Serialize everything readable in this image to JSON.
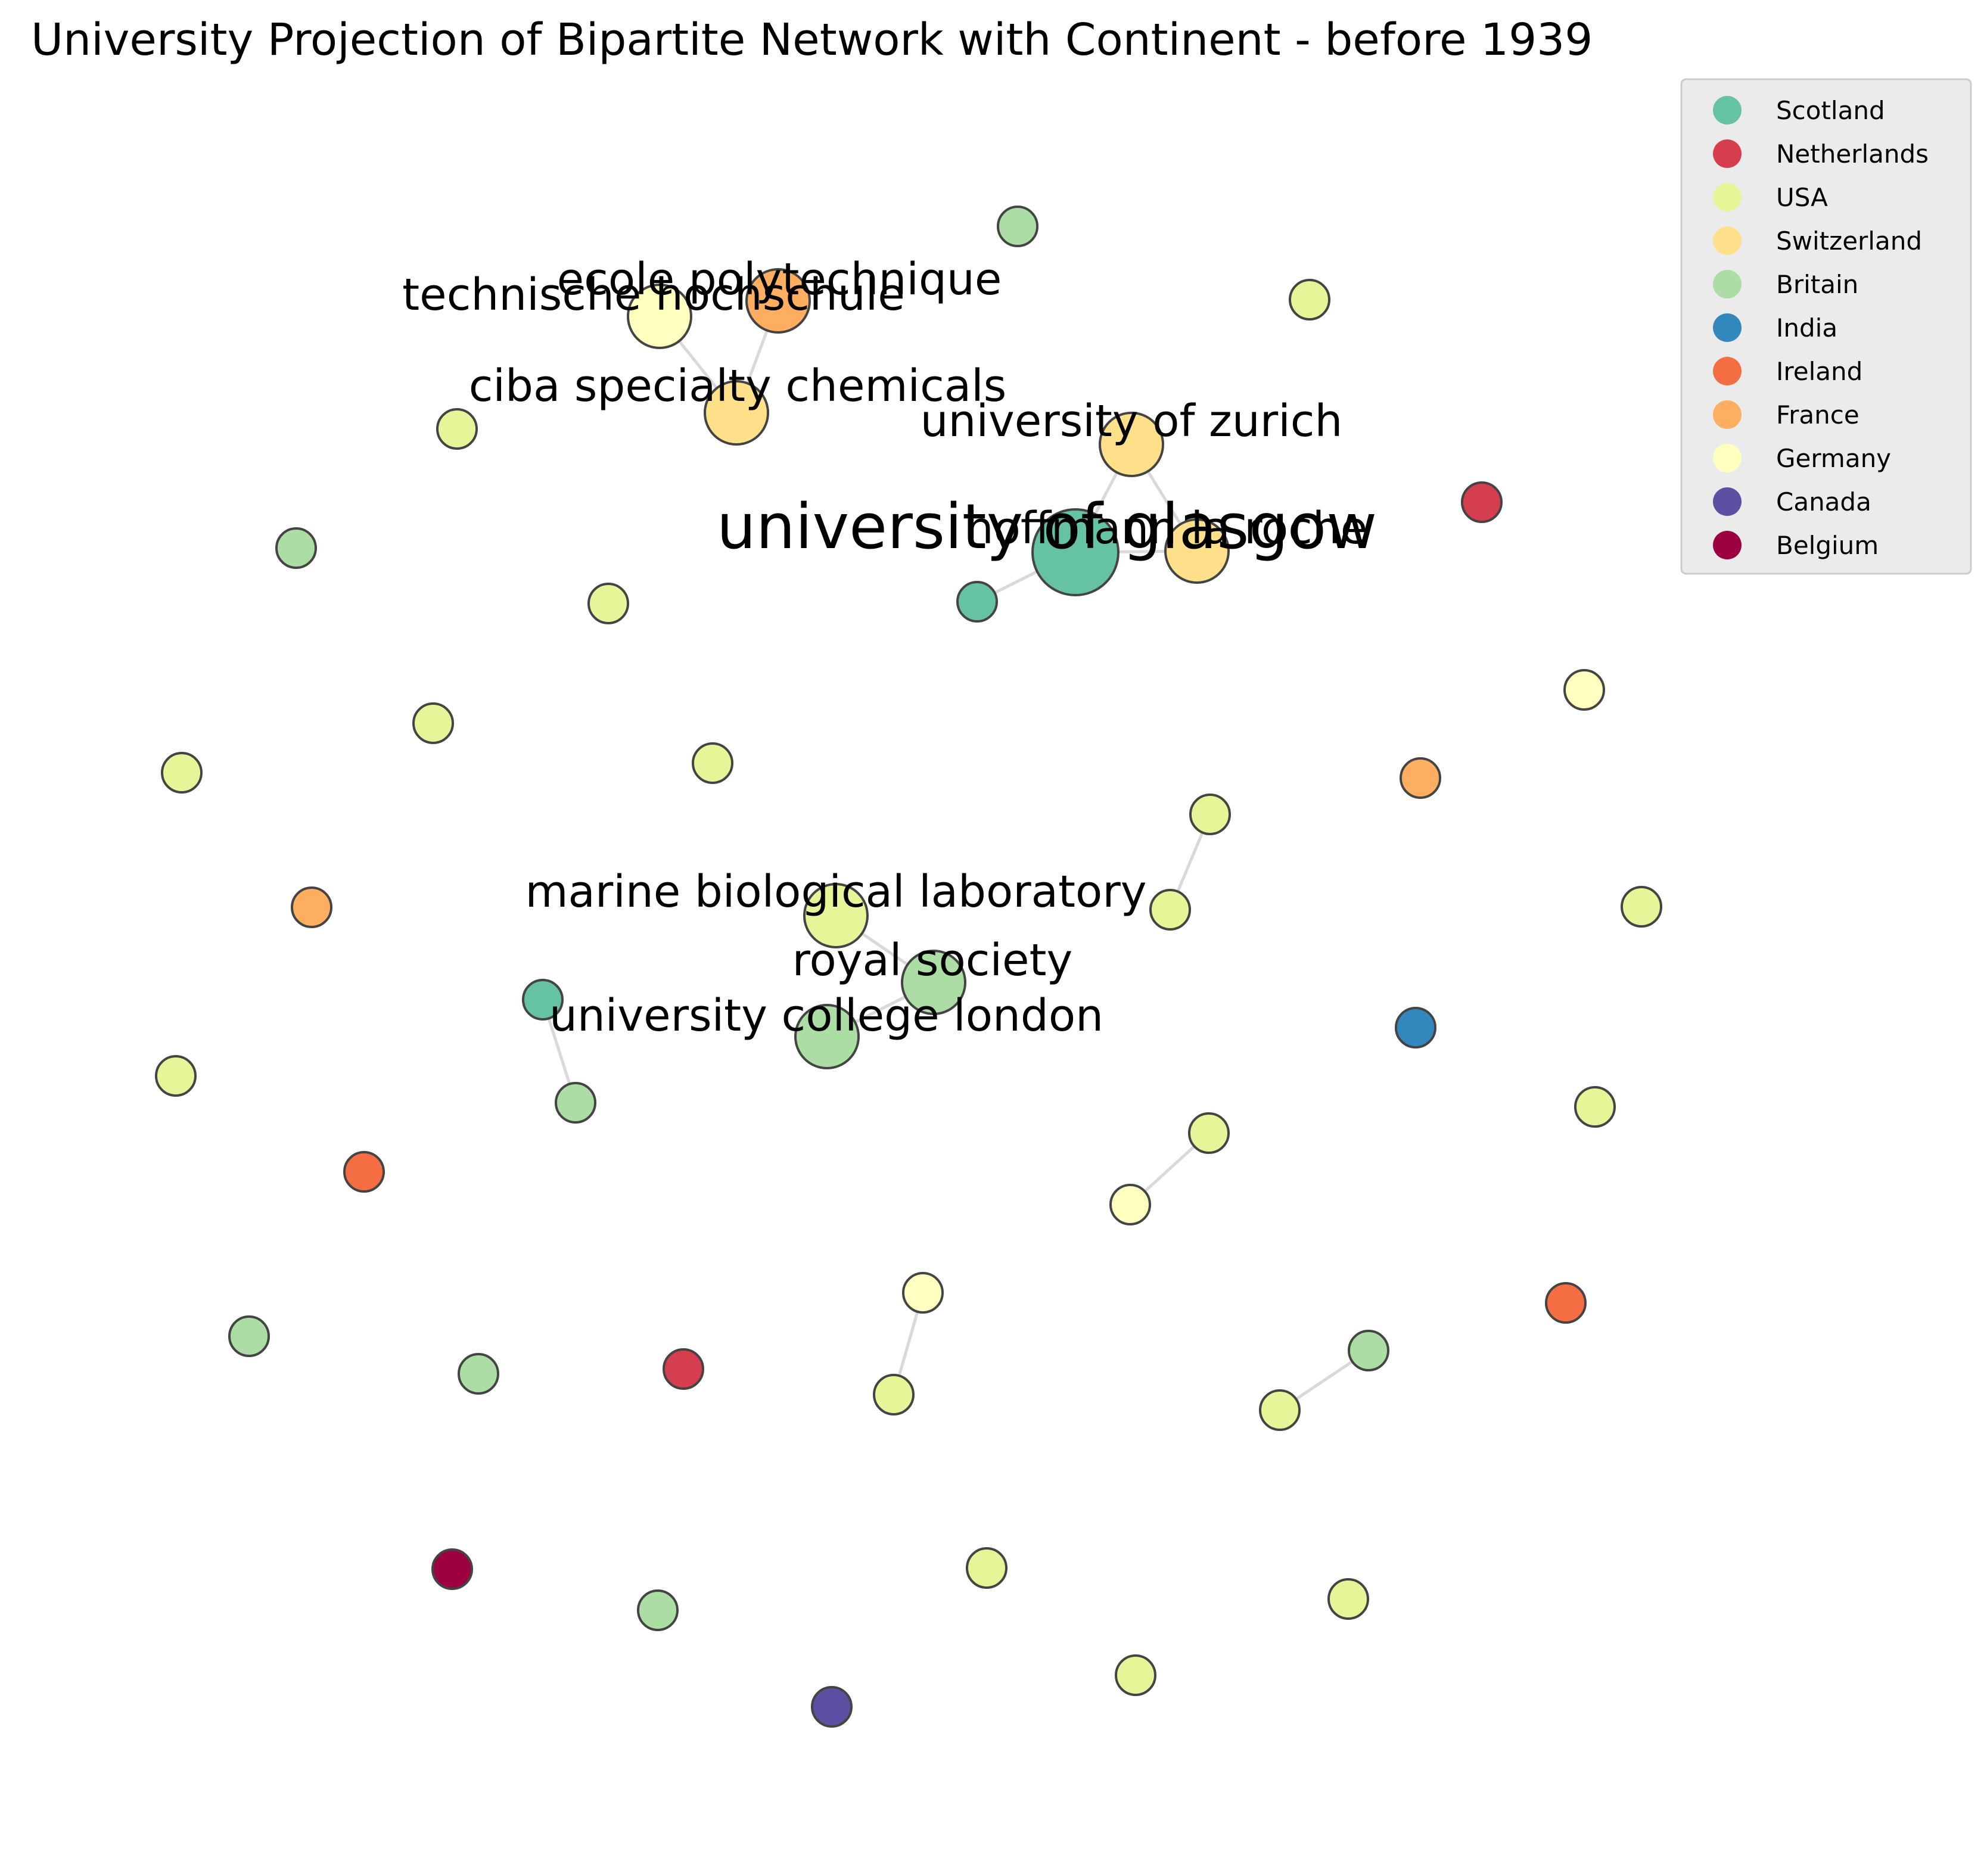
{
  "title": "University Projection of Bipartite Network with Continent - before 1939",
  "legend": [
    {
      "label": "Scotland",
      "color": "#66c2a5"
    },
    {
      "label": "Netherlands",
      "color": "#d53e4f"
    },
    {
      "label": "USA",
      "color": "#e6f598"
    },
    {
      "label": "Switzerland",
      "color": "#fee08b"
    },
    {
      "label": "Britain",
      "color": "#abdda4"
    },
    {
      "label": "India",
      "color": "#3288bd"
    },
    {
      "label": "Ireland",
      "color": "#f46d43"
    },
    {
      "label": "France",
      "color": "#fdae61"
    },
    {
      "label": "Germany",
      "color": "#ffffbf"
    },
    {
      "label": "Canada",
      "color": "#5e4fa2"
    },
    {
      "label": "Belgium",
      "color": "#9e0142"
    }
  ],
  "labeled_nodes": [
    {
      "id": "glasgow",
      "label": "university of glasgow",
      "country": "Scotland"
    },
    {
      "id": "hoffmann",
      "label": "hoffmann la roche",
      "country": "Switzerland"
    },
    {
      "id": "zurich",
      "label": "university of zurich",
      "country": "Switzerland"
    },
    {
      "id": "polytechnique",
      "label": "ecole polytechnique",
      "country": "France"
    },
    {
      "id": "hochschule",
      "label": "technische hochschule",
      "country": "Germany"
    },
    {
      "id": "ciba",
      "label": "ciba specialty chemicals",
      "country": "Switzerland"
    },
    {
      "id": "mbl",
      "label": "marine biological laboratory",
      "country": "USA"
    },
    {
      "id": "royal",
      "label": "royal society",
      "country": "Britain"
    },
    {
      "id": "ucl",
      "label": "university college london",
      "country": "Britain"
    }
  ]
}
